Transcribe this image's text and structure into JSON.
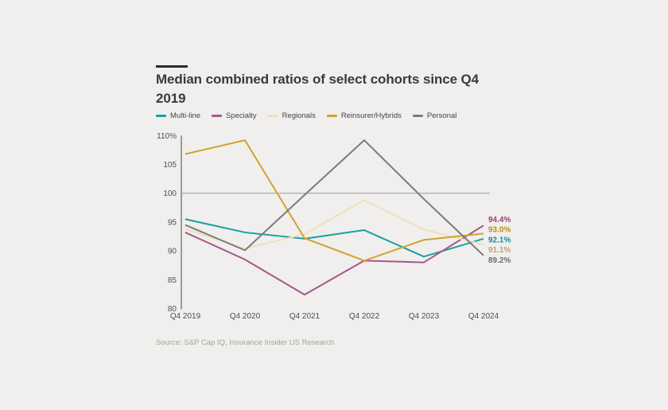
{
  "title": "Median combined ratios of select cohorts since Q4 2019",
  "source": "Source: S&P Cap IQ, Insurance Insider US Research",
  "colors": {
    "background": "#f0efed",
    "title": "#3a3a3a",
    "accent_bar": "#2b2b2b",
    "axis": "#9b9b9b",
    "grid": "#9b9b9b",
    "tick_text": "#4f4f4f",
    "source_text": "#a5a29d"
  },
  "chart_data": {
    "type": "line",
    "title": "Median combined ratios of select cohorts since Q4 2019",
    "categories": [
      "Q4 2019",
      "Q4 2020",
      "Q4 2021",
      "Q4 2022",
      "Q4 2023",
      "Q4 2024"
    ],
    "series": [
      {
        "name": "Multi-line",
        "color": "#18a1a1",
        "label_color": "#0e8f9b",
        "values": [
          95.5,
          93.2,
          92.1,
          93.6,
          89.0,
          92.1
        ],
        "end_label": "92.1%"
      },
      {
        "name": "Specialty",
        "color": "#a9568c",
        "label_color": "#9e3c77",
        "values": [
          93.2,
          88.5,
          82.4,
          88.3,
          88.0,
          94.4
        ],
        "end_label": "94.4%"
      },
      {
        "name": "Regionals",
        "color": "#f2debb",
        "label_color": "#c4a265",
        "values": [
          93.8,
          90.4,
          92.9,
          98.8,
          93.7,
          91.1
        ],
        "end_label": "91.1%"
      },
      {
        "name": "Reinsurer/Hybrids",
        "color": "#d1a32e",
        "label_color": "#b8920e",
        "values": [
          106.8,
          109.2,
          92.2,
          88.3,
          91.9,
          93.0
        ],
        "end_label": "93.0%"
      },
      {
        "name": "Personal",
        "color": "#7c7c7c",
        "label_color": "#6d6d6d",
        "values": [
          94.5,
          90.1,
          99.7,
          109.2,
          99.0,
          89.2
        ],
        "end_label": "89.2%"
      }
    ],
    "ylim": [
      80,
      110
    ],
    "yticks": [
      {
        "value": 110,
        "label": "110%"
      },
      {
        "value": 105,
        "label": "105"
      },
      {
        "value": 100,
        "label": "100"
      },
      {
        "value": 95,
        "label": "95"
      },
      {
        "value": 90,
        "label": "90"
      },
      {
        "value": 85,
        "label": "85"
      },
      {
        "value": 80,
        "label": "80"
      }
    ],
    "reference_line": 100,
    "legend_position": "top",
    "grid": "only reference line at 100"
  }
}
